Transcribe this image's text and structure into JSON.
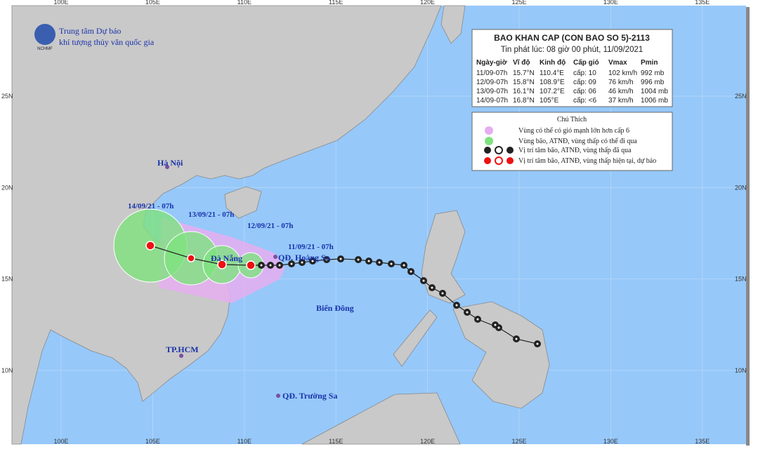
{
  "header": {
    "title": "Trung tâm Dự báo",
    "subtitle": "khí tượng thủy văn quốc gia",
    "logo": "NCHMF"
  },
  "grid": {
    "lon_labels": [
      "100E",
      "105E",
      "110E",
      "115E",
      "120E",
      "125E",
      "130E",
      "135E"
    ],
    "lat_labels": [
      "25N",
      "20N",
      "15N",
      "10N"
    ]
  },
  "places": [
    {
      "label": "Hà Nội"
    },
    {
      "label": "Đà Nẵng"
    },
    {
      "label": "TP.HCM"
    },
    {
      "label": "QĐ. Hoàng Sa"
    },
    {
      "label": "QĐ. Trường Sa"
    },
    {
      "label": "Biển Đông"
    }
  ],
  "track_labels": [
    "14/09/21 - 07h",
    "13/09/21 - 07h",
    "12/09/21 - 07h",
    "11/09/21 - 07h"
  ],
  "info": {
    "title": "BAO KHAN CAP (CON BAO SO 5)-2113",
    "issued": "Tin phát lúc: 08 giờ 00 phút, 11/09/2021",
    "columns": [
      "Ngày-giờ",
      "Vĩ độ",
      "Kinh độ",
      "Cấp gió",
      "Vmax",
      "Pmin"
    ],
    "rows": [
      [
        "11/09-07h",
        "15.7°N",
        "110.4°E",
        "cấp: 10",
        "102 km/h",
        "992 mb"
      ],
      [
        "12/09-07h",
        "15.8°N",
        "108.9°E",
        "cấp: 09",
        "76 km/h",
        "996 mb"
      ],
      [
        "13/09-07h",
        "16.1°N",
        "107.2°E",
        "cấp: 06",
        "46 km/h",
        "1004 mb"
      ],
      [
        "14/09-07h",
        "16.8°N",
        "105°E",
        "cấp: <6",
        "37 km/h",
        "1006 mb"
      ]
    ]
  },
  "legend": {
    "title": "Chú Thích",
    "items": [
      "Vùng có thể có gió mạnh lớn hơn cấp 6",
      "Vùng bão, ATNĐ, vùng thấp có thể đi qua",
      "Vị trí tâm bão, ATNĐ, vùng thấp đã qua",
      "Vị trí tâm bão, ATNĐ, vùng thấp hiện tại, dự báo"
    ]
  }
}
